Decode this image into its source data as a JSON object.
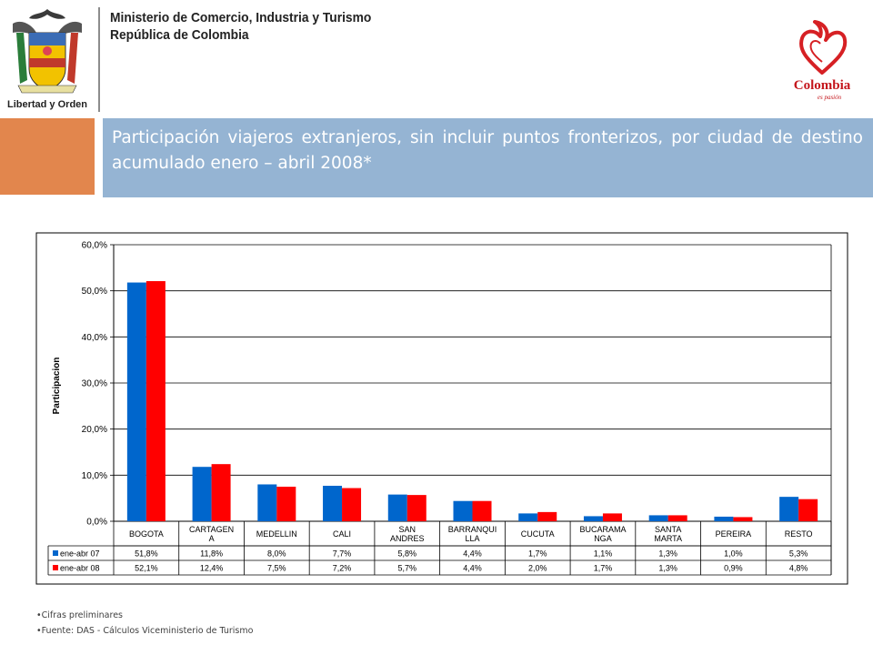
{
  "header": {
    "ministry_line1": "Ministerio de Comercio, Industria y Turismo",
    "ministry_line2": "República de Colombia",
    "emblem_motto": "Libertad y Orden",
    "brand_name": "Colombia",
    "brand_tagline": "es pasión"
  },
  "title": "Participación viajeros extranjeros, sin incluir puntos fronterizos, por ciudad de destino  acumulado  enero – abril 2008*",
  "colors": {
    "series1": "#0066cc",
    "series2": "#ff0000",
    "title_band": "#95b4d3",
    "accent_box": "#e2864d"
  },
  "chart_data": {
    "type": "bar",
    "ylabel": "Participacion",
    "ylim": [
      0,
      60
    ],
    "yticks": [
      "0,0%",
      "10,0%",
      "20,0%",
      "30,0%",
      "40,0%",
      "50,0%",
      "60,0%"
    ],
    "grid": true,
    "legend": "data-table-left",
    "categories": [
      [
        "BOGOTA"
      ],
      [
        "CARTAGEN",
        "A"
      ],
      [
        "MEDELLIN"
      ],
      [
        "CALI"
      ],
      [
        "SAN",
        "ANDRES"
      ],
      [
        "BARRANQUI",
        "LLA"
      ],
      [
        "CUCUTA"
      ],
      [
        "BUCARAMA",
        "NGA"
      ],
      [
        "SANTA",
        "MARTA"
      ],
      [
        "PEREIRA"
      ],
      [
        "RESTO"
      ]
    ],
    "series": [
      {
        "name": "ene-abr 07",
        "values": [
          51.8,
          11.8,
          8.0,
          7.7,
          5.8,
          4.4,
          1.7,
          1.1,
          1.3,
          1.0,
          5.3
        ],
        "labels": [
          "51,8%",
          "11,8%",
          "8,0%",
          "7,7%",
          "5,8%",
          "4,4%",
          "1,7%",
          "1,1%",
          "1,3%",
          "1,0%",
          "5,3%"
        ]
      },
      {
        "name": "ene-abr 08",
        "values": [
          52.1,
          12.4,
          7.5,
          7.2,
          5.7,
          4.4,
          2.0,
          1.7,
          1.3,
          0.9,
          4.8
        ],
        "labels": [
          "52,1%",
          "12,4%",
          "7,5%",
          "7,2%",
          "5,7%",
          "4,4%",
          "2,0%",
          "1,7%",
          "1,3%",
          "0,9%",
          "4,8%"
        ]
      }
    ]
  },
  "footnotes": [
    "•Cifras preliminares",
    "•Fuente: DAS - Cálculos Viceministerio de Turismo"
  ]
}
